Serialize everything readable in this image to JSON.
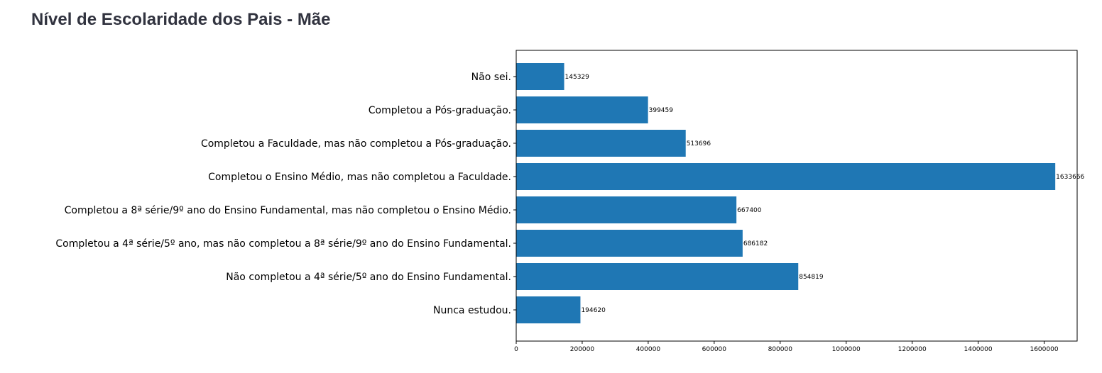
{
  "page": {
    "title": "Nível de Escolaridade dos Pais - Mãe"
  },
  "chart_data": {
    "type": "bar",
    "orientation": "horizontal",
    "title": "",
    "xlabel": "",
    "ylabel": "",
    "categories": [
      "Não sei.",
      "Completou a Pós-graduação.",
      "Completou a Faculdade, mas não completou a Pós-graduação.",
      "Completou o Ensino Médio, mas não completou a Faculdade.",
      "Completou a 8ª série/9º ano do Ensino Fundamental, mas não completou o Ensino Médio.",
      "Completou a 4ª série/5º ano, mas não completou a 8ª série/9º ano do Ensino Fundamental.",
      "Não completou a 4ª série/5º ano do Ensino Fundamental.",
      "Nunca estudou."
    ],
    "values": [
      145329,
      399459,
      513696,
      1633666,
      667400,
      686182,
      854819,
      194620
    ],
    "value_labels": [
      "145329",
      "399459",
      "513696",
      "1633666",
      "667400",
      "686182",
      "854819",
      "194620"
    ],
    "xlim": [
      0,
      1700000
    ],
    "xticks": [
      0,
      200000,
      400000,
      600000,
      800000,
      1000000,
      1200000,
      1400000,
      1600000
    ],
    "xtick_labels": [
      "0",
      "200000",
      "400000",
      "600000",
      "800000",
      "1000000",
      "1200000",
      "1400000",
      "1600000"
    ],
    "grid": false,
    "bar_color": "#1f77b4"
  }
}
